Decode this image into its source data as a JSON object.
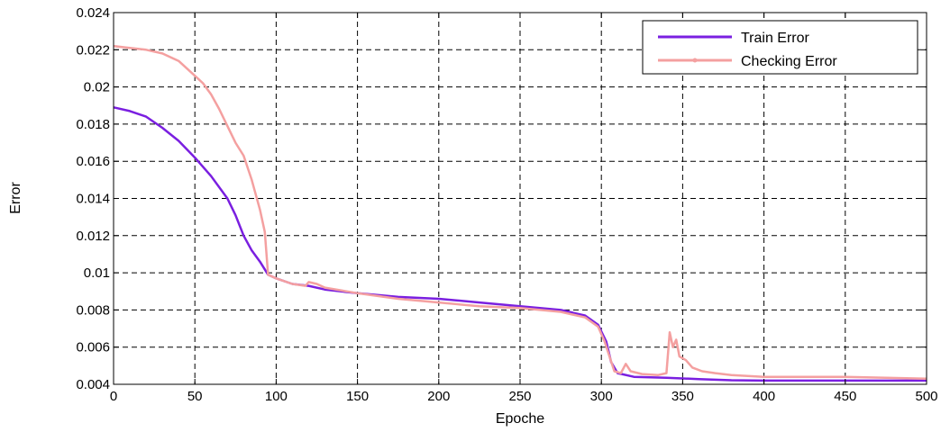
{
  "chart_data": {
    "type": "line",
    "title": "",
    "xlabel": "Epoche",
    "ylabel": "Error",
    "xlim": [
      0,
      500
    ],
    "ylim": [
      0.004,
      0.024
    ],
    "grid": true,
    "grid_style": "dashed",
    "legend_position": "top-right",
    "x_ticks": [
      "0",
      "50",
      "100",
      "150",
      "200",
      "250",
      "300",
      "350",
      "400",
      "450",
      "500"
    ],
    "y_ticks": [
      "0.004",
      "0.006",
      "0.008",
      "0.01",
      "0.012",
      "0.014",
      "0.016",
      "0.018",
      "0.02",
      "0.022",
      "0.024"
    ],
    "series": [
      {
        "name": "Train Error",
        "color": "#7a1fe0",
        "points": [
          [
            0,
            0.0189
          ],
          [
            10,
            0.0187
          ],
          [
            20,
            0.0184
          ],
          [
            30,
            0.0178
          ],
          [
            40,
            0.0171
          ],
          [
            50,
            0.0162
          ],
          [
            60,
            0.0152
          ],
          [
            70,
            0.014
          ],
          [
            75,
            0.0131
          ],
          [
            80,
            0.012
          ],
          [
            85,
            0.0112
          ],
          [
            90,
            0.0106
          ],
          [
            95,
            0.0099
          ],
          [
            100,
            0.0097
          ],
          [
            110,
            0.0094
          ],
          [
            120,
            0.0093
          ],
          [
            130,
            0.0091
          ],
          [
            140,
            0.009
          ],
          [
            150,
            0.0089
          ],
          [
            175,
            0.0087
          ],
          [
            200,
            0.0086
          ],
          [
            225,
            0.0084
          ],
          [
            250,
            0.0082
          ],
          [
            275,
            0.008
          ],
          [
            290,
            0.0077
          ],
          [
            298,
            0.0072
          ],
          [
            303,
            0.0063
          ],
          [
            306,
            0.0052
          ],
          [
            310,
            0.0046
          ],
          [
            320,
            0.0044
          ],
          [
            340,
            0.00435
          ],
          [
            360,
            0.00428
          ],
          [
            380,
            0.00422
          ],
          [
            400,
            0.0042
          ],
          [
            450,
            0.0042
          ],
          [
            500,
            0.0042
          ]
        ]
      },
      {
        "name": "Checking Error",
        "color": "#f4a0a0",
        "points": [
          [
            0,
            0.0222
          ],
          [
            10,
            0.0221
          ],
          [
            20,
            0.022
          ],
          [
            30,
            0.0218
          ],
          [
            40,
            0.0214
          ],
          [
            50,
            0.0206
          ],
          [
            55,
            0.0202
          ],
          [
            60,
            0.0196
          ],
          [
            65,
            0.0188
          ],
          [
            70,
            0.0179
          ],
          [
            75,
            0.017
          ],
          [
            80,
            0.0163
          ],
          [
            85,
            0.015
          ],
          [
            90,
            0.0134
          ],
          [
            93,
            0.0122
          ],
          [
            95,
            0.0099
          ],
          [
            100,
            0.0097
          ],
          [
            110,
            0.0094
          ],
          [
            118,
            0.0093
          ],
          [
            120,
            0.0095
          ],
          [
            125,
            0.0094
          ],
          [
            130,
            0.0092
          ],
          [
            150,
            0.0089
          ],
          [
            175,
            0.0086
          ],
          [
            200,
            0.0084
          ],
          [
            225,
            0.0082
          ],
          [
            250,
            0.0081
          ],
          [
            275,
            0.0079
          ],
          [
            290,
            0.0076
          ],
          [
            298,
            0.0071
          ],
          [
            302,
            0.0063
          ],
          [
            305,
            0.0055
          ],
          [
            308,
            0.0047
          ],
          [
            312,
            0.0046
          ],
          [
            315,
            0.0051
          ],
          [
            318,
            0.0047
          ],
          [
            325,
            0.00455
          ],
          [
            335,
            0.0045
          ],
          [
            340,
            0.0046
          ],
          [
            342,
            0.0068
          ],
          [
            344,
            0.006
          ],
          [
            346,
            0.0064
          ],
          [
            348,
            0.0055
          ],
          [
            352,
            0.0053
          ],
          [
            356,
            0.0049
          ],
          [
            362,
            0.0047
          ],
          [
            370,
            0.0046
          ],
          [
            380,
            0.0045
          ],
          [
            400,
            0.0044
          ],
          [
            450,
            0.0044
          ],
          [
            500,
            0.0043
          ]
        ]
      }
    ]
  }
}
